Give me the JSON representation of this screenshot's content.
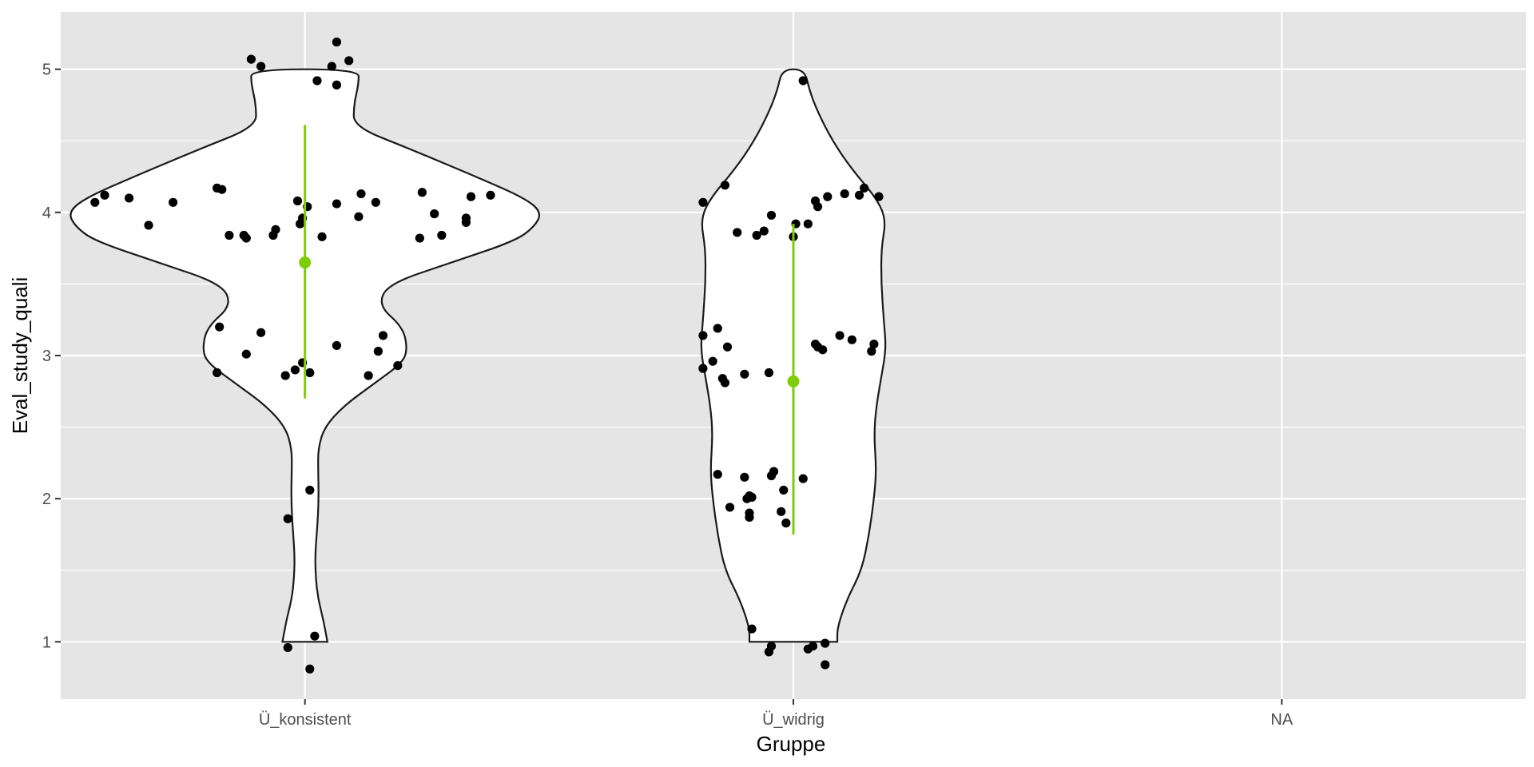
{
  "chart_data": {
    "type": "violin",
    "xlabel": "Gruppe",
    "ylabel": "Eval_study_quali",
    "categories": [
      "Ü_konsistent",
      "Ü_widrig",
      "NA"
    ],
    "ylim": [
      0.6,
      5.4
    ],
    "y_ticks": [
      1,
      2,
      3,
      4,
      5
    ],
    "x_grid": true,
    "y_grid": true,
    "colors": {
      "panel": "#e5e5e5",
      "grid": "#ffffff",
      "violin_fill": "#ffffff",
      "violin_outline": "#1a1a1a",
      "points": "#000000",
      "summary": "#7fcd08"
    },
    "groups": [
      {
        "category": "Ü_konsistent",
        "violin_range": [
          1,
          5
        ],
        "violin_halfwidth_profile": [
          {
            "y": 1.0,
            "w": 0.046
          },
          {
            "y": 1.15,
            "w": 0.038
          },
          {
            "y": 1.3,
            "w": 0.027
          },
          {
            "y": 1.45,
            "w": 0.022
          },
          {
            "y": 1.6,
            "w": 0.021
          },
          {
            "y": 1.75,
            "w": 0.024
          },
          {
            "y": 1.9,
            "w": 0.027
          },
          {
            "y": 2.05,
            "w": 0.028
          },
          {
            "y": 2.2,
            "w": 0.027
          },
          {
            "y": 2.35,
            "w": 0.027
          },
          {
            "y": 2.5,
            "w": 0.04
          },
          {
            "y": 2.65,
            "w": 0.08
          },
          {
            "y": 2.8,
            "w": 0.14
          },
          {
            "y": 2.95,
            "w": 0.2
          },
          {
            "y": 3.05,
            "w": 0.21
          },
          {
            "y": 3.2,
            "w": 0.2
          },
          {
            "y": 3.35,
            "w": 0.15
          },
          {
            "y": 3.5,
            "w": 0.17
          },
          {
            "y": 3.65,
            "w": 0.3
          },
          {
            "y": 3.8,
            "w": 0.43
          },
          {
            "y": 3.9,
            "w": 0.47
          },
          {
            "y": 4.0,
            "w": 0.485
          },
          {
            "y": 4.1,
            "w": 0.45
          },
          {
            "y": 4.25,
            "w": 0.35
          },
          {
            "y": 4.45,
            "w": 0.21
          },
          {
            "y": 4.6,
            "w": 0.1
          },
          {
            "y": 4.75,
            "w": 0.1
          },
          {
            "y": 4.9,
            "w": 0.11
          },
          {
            "y": 5.0,
            "w": 0.11
          }
        ],
        "points": [
          {
            "dx": -0.43,
            "y": 4.07
          },
          {
            "dx": -0.41,
            "y": 4.12
          },
          {
            "dx": -0.36,
            "y": 4.1
          },
          {
            "dx": -0.32,
            "y": 3.91
          },
          {
            "dx": -0.27,
            "y": 4.07
          },
          {
            "dx": -0.18,
            "y": 4.17
          },
          {
            "dx": -0.17,
            "y": 4.16
          },
          {
            "dx": -0.155,
            "y": 3.84
          },
          {
            "dx": -0.125,
            "y": 3.84
          },
          {
            "dx": -0.12,
            "y": 3.82
          },
          {
            "dx": -0.065,
            "y": 3.84
          },
          {
            "dx": -0.06,
            "y": 3.88
          },
          {
            "dx": -0.015,
            "y": 4.08
          },
          {
            "dx": -0.01,
            "y": 3.92
          },
          {
            "dx": -0.005,
            "y": 3.96
          },
          {
            "dx": 0.005,
            "y": 4.04
          },
          {
            "dx": 0.035,
            "y": 3.83
          },
          {
            "dx": 0.065,
            "y": 4.06
          },
          {
            "dx": 0.11,
            "y": 3.97
          },
          {
            "dx": 0.115,
            "y": 4.13
          },
          {
            "dx": 0.145,
            "y": 4.07
          },
          {
            "dx": 0.235,
            "y": 3.82
          },
          {
            "dx": 0.24,
            "y": 4.14
          },
          {
            "dx": 0.265,
            "y": 3.99
          },
          {
            "dx": 0.28,
            "y": 3.84
          },
          {
            "dx": 0.33,
            "y": 3.93
          },
          {
            "dx": 0.33,
            "y": 3.96
          },
          {
            "dx": 0.34,
            "y": 4.11
          },
          {
            "dx": 0.38,
            "y": 4.12
          },
          {
            "dx": -0.11,
            "y": 5.07
          },
          {
            "dx": -0.09,
            "y": 5.02
          },
          {
            "dx": 0.025,
            "y": 4.92
          },
          {
            "dx": 0.055,
            "y": 5.02
          },
          {
            "dx": 0.065,
            "y": 4.89
          },
          {
            "dx": 0.065,
            "y": 5.19
          },
          {
            "dx": 0.09,
            "y": 5.06
          },
          {
            "dx": -0.175,
            "y": 3.2
          },
          {
            "dx": -0.18,
            "y": 2.88
          },
          {
            "dx": -0.12,
            "y": 3.01
          },
          {
            "dx": -0.09,
            "y": 3.16
          },
          {
            "dx": -0.04,
            "y": 2.86
          },
          {
            "dx": -0.02,
            "y": 2.9
          },
          {
            "dx": -0.005,
            "y": 2.95
          },
          {
            "dx": 0.01,
            "y": 2.88
          },
          {
            "dx": 0.065,
            "y": 3.07
          },
          {
            "dx": 0.13,
            "y": 2.86
          },
          {
            "dx": 0.15,
            "y": 3.03
          },
          {
            "dx": 0.16,
            "y": 3.14
          },
          {
            "dx": 0.19,
            "y": 2.93
          },
          {
            "dx": 0.01,
            "y": 2.06
          },
          {
            "dx": -0.035,
            "y": 1.86
          },
          {
            "dx": -0.035,
            "y": 0.96
          },
          {
            "dx": 0.01,
            "y": 0.81
          },
          {
            "dx": 0.02,
            "y": 1.04
          }
        ],
        "summary": {
          "mean": 3.65,
          "lower": 2.7,
          "upper": 4.61
        }
      },
      {
        "category": "Ü_widrig",
        "violin_range": [
          1,
          5
        ],
        "violin_halfwidth_profile": [
          {
            "y": 1.0,
            "w": 0.09
          },
          {
            "y": 1.1,
            "w": 0.09
          },
          {
            "y": 1.3,
            "w": 0.11
          },
          {
            "y": 1.5,
            "w": 0.14
          },
          {
            "y": 1.75,
            "w": 0.155
          },
          {
            "y": 2.0,
            "w": 0.165
          },
          {
            "y": 2.2,
            "w": 0.17
          },
          {
            "y": 2.45,
            "w": 0.165
          },
          {
            "y": 2.65,
            "w": 0.17
          },
          {
            "y": 2.85,
            "w": 0.18
          },
          {
            "y": 3.05,
            "w": 0.19
          },
          {
            "y": 3.25,
            "w": 0.185
          },
          {
            "y": 3.5,
            "w": 0.18
          },
          {
            "y": 3.75,
            "w": 0.18
          },
          {
            "y": 3.95,
            "w": 0.19
          },
          {
            "y": 4.1,
            "w": 0.17
          },
          {
            "y": 4.3,
            "w": 0.12
          },
          {
            "y": 4.5,
            "w": 0.08
          },
          {
            "y": 4.7,
            "w": 0.05
          },
          {
            "y": 4.85,
            "w": 0.033
          },
          {
            "y": 5.0,
            "w": 0.023
          }
        ],
        "points": [
          {
            "dx": 0.02,
            "y": 4.92
          },
          {
            "dx": -0.185,
            "y": 4.07
          },
          {
            "dx": -0.14,
            "y": 4.19
          },
          {
            "dx": -0.115,
            "y": 3.86
          },
          {
            "dx": -0.075,
            "y": 3.84
          },
          {
            "dx": -0.06,
            "y": 3.87
          },
          {
            "dx": -0.045,
            "y": 3.98
          },
          {
            "dx": 0.0,
            "y": 3.83
          },
          {
            "dx": 0.005,
            "y": 3.92
          },
          {
            "dx": 0.03,
            "y": 3.92
          },
          {
            "dx": 0.045,
            "y": 4.08
          },
          {
            "dx": 0.05,
            "y": 4.04
          },
          {
            "dx": 0.07,
            "y": 4.11
          },
          {
            "dx": 0.105,
            "y": 4.13
          },
          {
            "dx": 0.135,
            "y": 4.12
          },
          {
            "dx": 0.145,
            "y": 4.17
          },
          {
            "dx": 0.175,
            "y": 4.11
          },
          {
            "dx": -0.185,
            "y": 3.14
          },
          {
            "dx": -0.185,
            "y": 2.91
          },
          {
            "dx": -0.165,
            "y": 2.96
          },
          {
            "dx": -0.155,
            "y": 3.19
          },
          {
            "dx": -0.145,
            "y": 2.84
          },
          {
            "dx": -0.14,
            "y": 2.81
          },
          {
            "dx": -0.135,
            "y": 3.06
          },
          {
            "dx": -0.1,
            "y": 2.87
          },
          {
            "dx": -0.05,
            "y": 2.88
          },
          {
            "dx": 0.045,
            "y": 3.08
          },
          {
            "dx": 0.05,
            "y": 3.06
          },
          {
            "dx": 0.06,
            "y": 3.04
          },
          {
            "dx": 0.095,
            "y": 3.14
          },
          {
            "dx": 0.12,
            "y": 3.11
          },
          {
            "dx": 0.16,
            "y": 3.03
          },
          {
            "dx": 0.165,
            "y": 3.08
          },
          {
            "dx": -0.155,
            "y": 2.17
          },
          {
            "dx": -0.13,
            "y": 1.94
          },
          {
            "dx": -0.1,
            "y": 2.15
          },
          {
            "dx": -0.095,
            "y": 2.0
          },
          {
            "dx": -0.09,
            "y": 2.02
          },
          {
            "dx": -0.09,
            "y": 1.87
          },
          {
            "dx": -0.09,
            "y": 1.9
          },
          {
            "dx": -0.085,
            "y": 2.01
          },
          {
            "dx": -0.045,
            "y": 2.16
          },
          {
            "dx": -0.04,
            "y": 2.19
          },
          {
            "dx": -0.025,
            "y": 1.91
          },
          {
            "dx": -0.02,
            "y": 2.06
          },
          {
            "dx": -0.015,
            "y": 1.83
          },
          {
            "dx": 0.02,
            "y": 2.14
          },
          {
            "dx": -0.085,
            "y": 1.09
          },
          {
            "dx": -0.05,
            "y": 0.93
          },
          {
            "dx": -0.045,
            "y": 0.97
          },
          {
            "dx": 0.03,
            "y": 0.95
          },
          {
            "dx": 0.04,
            "y": 0.97
          },
          {
            "dx": 0.065,
            "y": 0.99
          },
          {
            "dx": 0.065,
            "y": 0.84
          }
        ],
        "summary": {
          "mean": 2.82,
          "lower": 1.75,
          "upper": 3.92
        }
      },
      {
        "category": "NA",
        "violin_range": null,
        "violin_halfwidth_profile": [],
        "points": [],
        "summary": null
      }
    ]
  }
}
